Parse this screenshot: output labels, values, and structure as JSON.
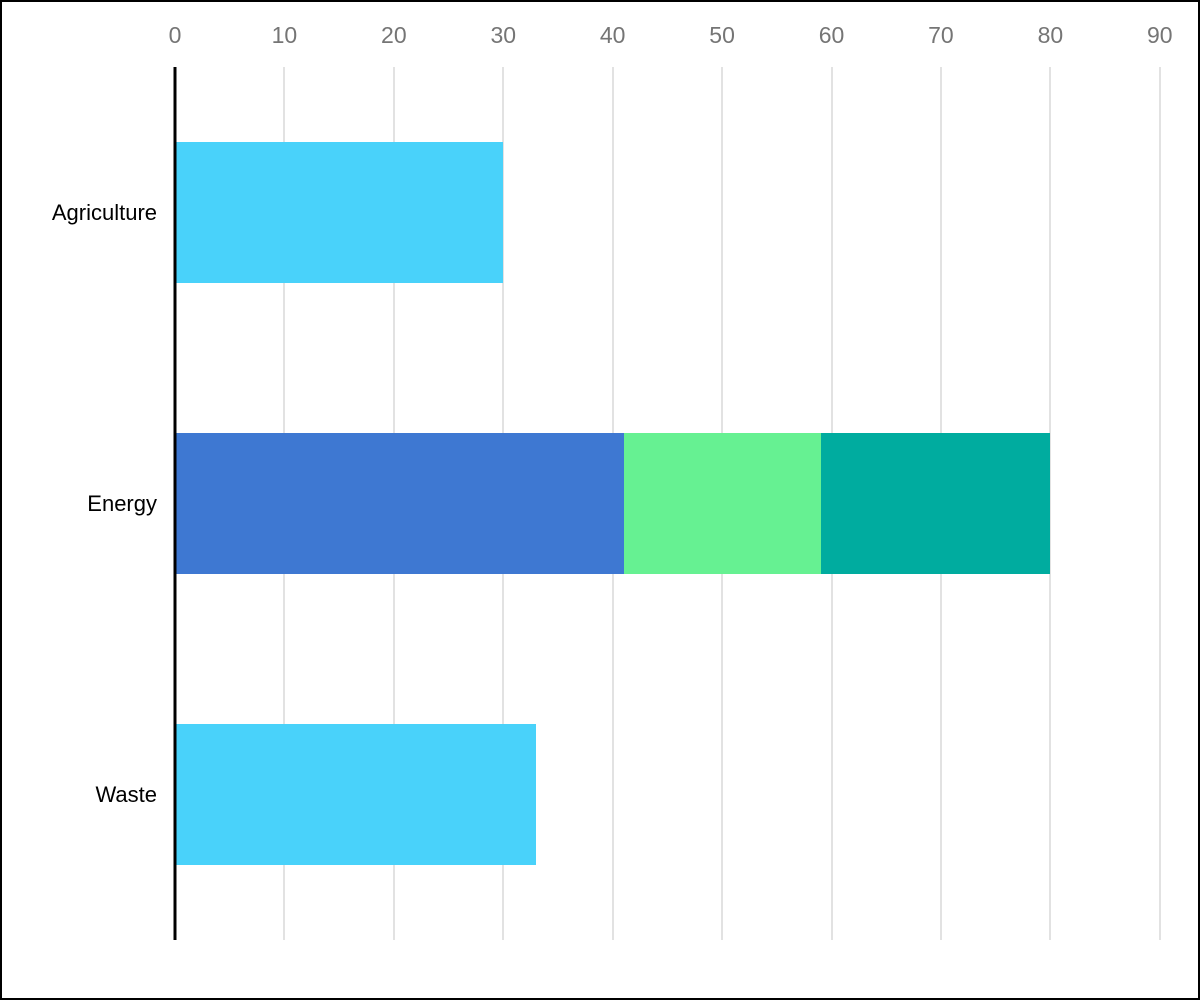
{
  "chart_data": {
    "type": "bar",
    "orientation": "horizontal",
    "title": "",
    "xlabel": "",
    "ylabel": "",
    "axis": {
      "position": "top",
      "ticks": [
        0,
        10,
        20,
        30,
        40,
        50,
        60,
        70,
        80,
        90
      ],
      "xlim": [
        0,
        93.4
      ],
      "grid": true
    },
    "categories": [
      "Agriculture",
      "Energy",
      "Waste"
    ],
    "rows": [
      {
        "category": "Agriculture",
        "total": 30,
        "segments": [
          {
            "value": 30,
            "color": "#49D2FA"
          }
        ]
      },
      {
        "category": "Energy",
        "total": 80,
        "segments": [
          {
            "value": 41,
            "color": "#3E78D2"
          },
          {
            "value": 18,
            "color": "#66F192"
          },
          {
            "value": 21,
            "color": "#00AC9F"
          }
        ]
      },
      {
        "category": "Waste",
        "total": 33,
        "segments": [
          {
            "value": 33,
            "color": "#49D2FA"
          }
        ]
      }
    ],
    "colors": {
      "grid": "#E2E2E2",
      "axis_line": "#000000",
      "tick_label": "#757575",
      "category_label": "#000000",
      "background": "#FFFFFF",
      "frame_border": "#000000"
    }
  }
}
